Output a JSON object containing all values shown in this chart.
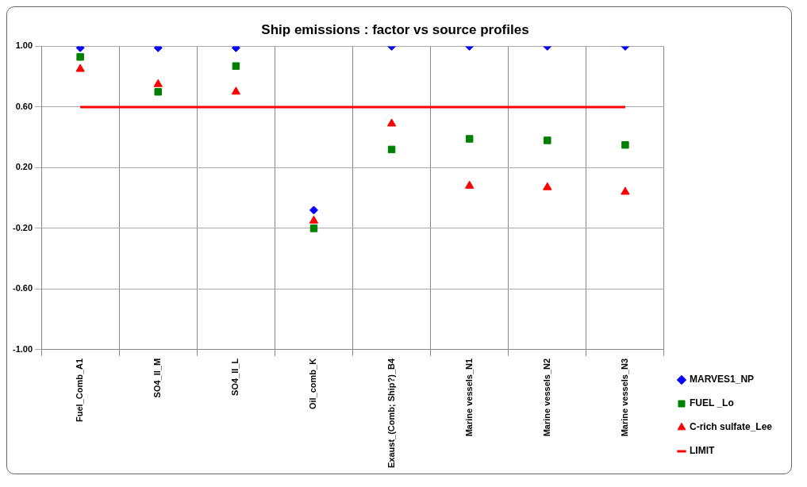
{
  "chart_data": {
    "type": "scatter",
    "title": "Ship emissions : factor vs source profiles",
    "categories": [
      "Fuel_Comb_A1",
      "SO4_II_M",
      "SO4_II_L",
      "Oil_comb_K",
      "Exaust_(Comb; Ship?)_B4",
      "Marine vessels_N1",
      "Marine vessels_N2",
      "Marine vessels_N3"
    ],
    "series": [
      {
        "name": "MARVES1_NP",
        "color": "#0000ff",
        "marker": "diamond",
        "values": [
          0.99,
          0.99,
          0.99,
          -0.08,
          1.0,
          1.0,
          1.0,
          1.0
        ]
      },
      {
        "name": "FUEL _Lo",
        "color": "#008000",
        "marker": "square",
        "values": [
          0.93,
          0.7,
          0.87,
          -0.2,
          0.32,
          0.39,
          0.38,
          0.35
        ]
      },
      {
        "name": "C-rich sulfate_Lee",
        "color": "#ff0000",
        "marker": "triangle",
        "values": [
          0.85,
          0.75,
          0.7,
          -0.15,
          0.49,
          0.08,
          0.07,
          0.04
        ]
      },
      {
        "name": "LIMIT",
        "type": "line",
        "color": "#ff0000",
        "marker": "none",
        "line_style": "solid",
        "values": [
          0.6,
          0.6,
          0.6,
          0.6,
          0.6,
          0.6,
          0.6,
          0.6
        ]
      }
    ],
    "ylim": [
      -1,
      1
    ],
    "yticks": [
      {
        "value": -1,
        "label": "-1.00"
      },
      {
        "value": -0.6,
        "label": "-0.60"
      },
      {
        "value": -0.2,
        "label": "-0.20"
      },
      {
        "value": 0.2,
        "label": "0.20"
      },
      {
        "value": 0.6,
        "label": "0.60"
      },
      {
        "value": 1,
        "label": "1.00"
      }
    ],
    "grid": true,
    "legend": "bottom right"
  }
}
